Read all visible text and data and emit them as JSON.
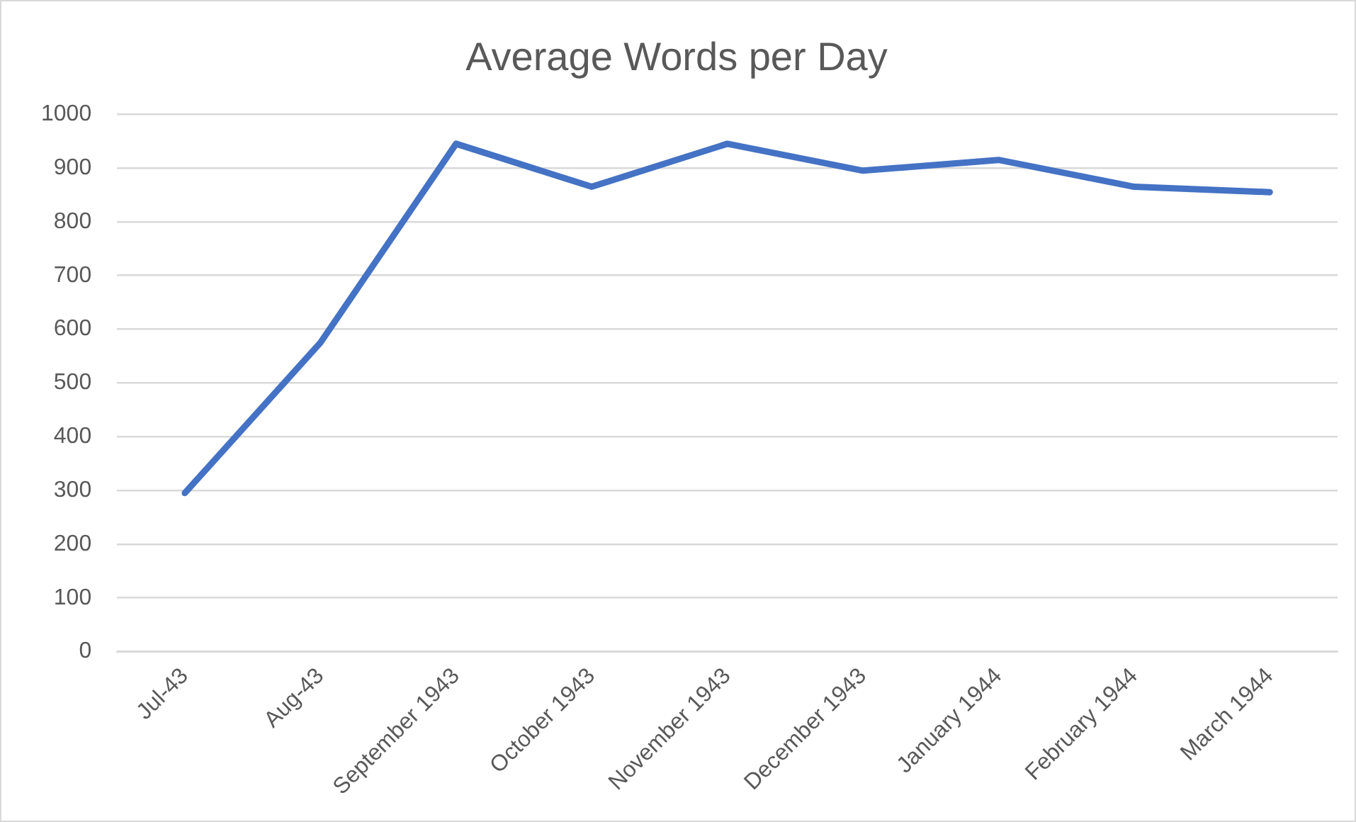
{
  "chart_data": {
    "type": "line",
    "title": "Average Words per Day",
    "categories": [
      "Jul-43",
      "Aug-43",
      "September 1943",
      "October 1943",
      "November 1943",
      "December 1943",
      "January 1944",
      "February 1944",
      "March 1944"
    ],
    "series": [
      {
        "color": "#4472c4",
        "values": [
          295,
          575,
          945,
          865,
          945,
          895,
          915,
          865,
          855
        ]
      }
    ],
    "ylim": [
      0,
      1000
    ],
    "yticks": [
      0,
      100,
      200,
      300,
      400,
      500,
      600,
      700,
      800,
      900,
      1000
    ],
    "grid": "y",
    "legend": false,
    "marker": "none",
    "line_style": "solid"
  }
}
